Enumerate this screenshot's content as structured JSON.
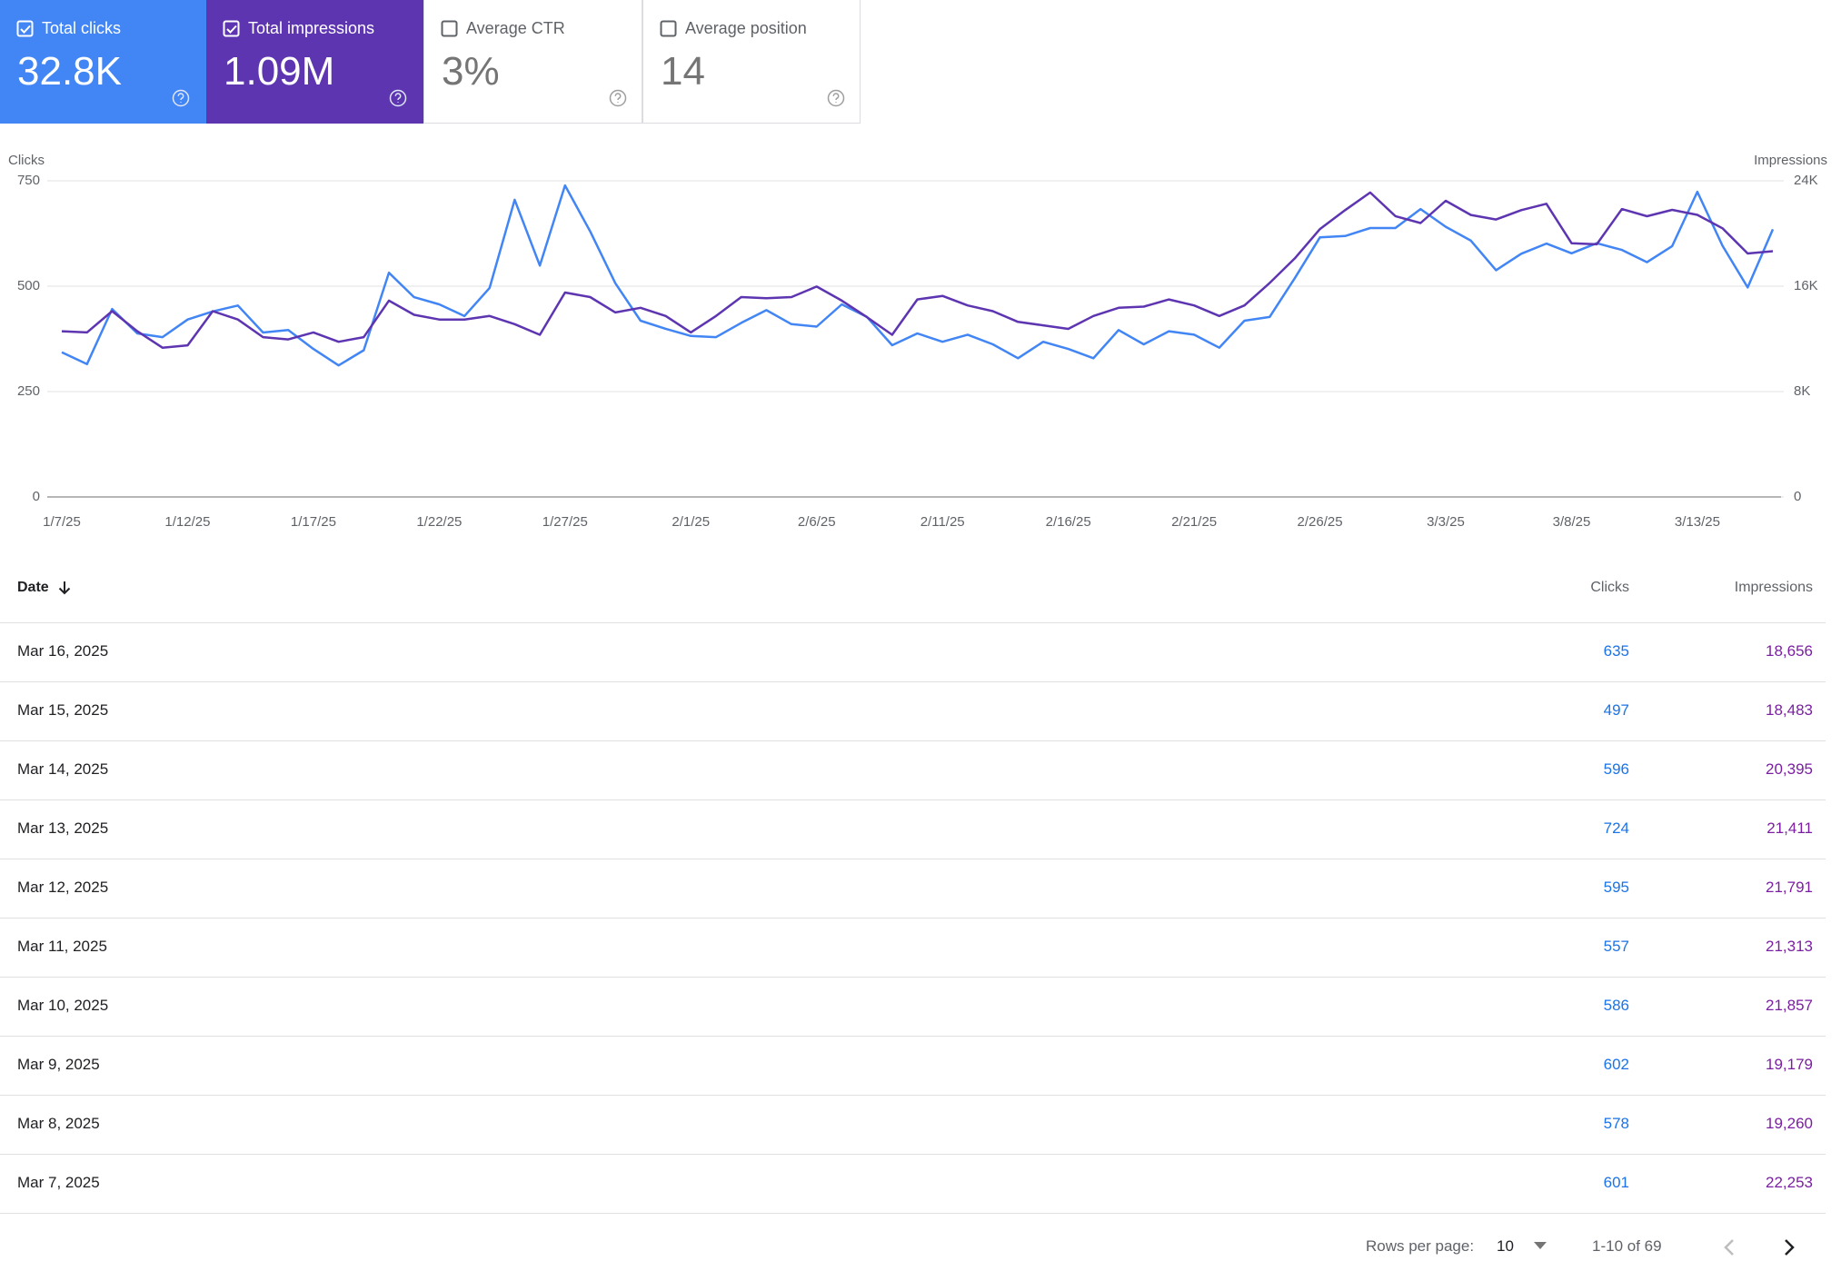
{
  "metric_cards": [
    {
      "label": "Total clicks",
      "value": "32.8K",
      "checked": true,
      "color": "#4285f4"
    },
    {
      "label": "Total impressions",
      "value": "1.09M",
      "checked": true,
      "color": "#5e35b1"
    },
    {
      "label": "Average CTR",
      "value": "3%",
      "checked": false,
      "color": "#ffffff"
    },
    {
      "label": "Average position",
      "value": "14",
      "checked": false,
      "color": "#ffffff"
    }
  ],
  "chart_data": {
    "type": "line",
    "categories": [
      "1/7/25",
      null,
      null,
      null,
      null,
      "1/12/25",
      null,
      null,
      null,
      null,
      "1/17/25",
      null,
      null,
      null,
      null,
      "1/22/25",
      null,
      null,
      null,
      null,
      "1/27/25",
      null,
      null,
      null,
      null,
      "2/1/25",
      null,
      null,
      null,
      null,
      "2/6/25",
      null,
      null,
      null,
      null,
      "2/11/25",
      null,
      null,
      null,
      null,
      "2/16/25",
      null,
      null,
      null,
      null,
      "2/21/25",
      null,
      null,
      null,
      null,
      "2/26/25",
      null,
      null,
      null,
      null,
      "3/3/25",
      null,
      null,
      null,
      null,
      "3/8/25",
      null,
      null,
      null,
      null,
      "3/13/25",
      null,
      null,
      null
    ],
    "series": [
      {
        "name": "Clicks",
        "color": "#4285f4",
        "values": [
          343,
          315,
          446,
          388,
          379,
          421,
          440,
          454,
          390,
          396,
          351,
          312,
          348,
          532,
          474,
          457,
          429,
          496,
          705,
          549,
          739,
          630,
          507,
          418,
          399,
          382,
          379,
          413,
          443,
          410,
          404,
          457,
          427,
          360,
          388,
          368,
          385,
          362,
          329,
          368,
          351,
          329,
          396,
          362,
          393,
          385,
          354,
          418,
          427,
          519,
          616,
          619,
          638,
          638,
          683,
          641,
          608,
          538,
          577,
          601,
          578,
          602,
          586,
          557,
          595,
          724,
          596,
          497,
          635
        ]
      },
      {
        "name": "Impressions",
        "color": "#5e35b1",
        "axis": "y2",
        "values": [
          12580,
          12490,
          14100,
          12580,
          11330,
          11510,
          14100,
          13470,
          12130,
          11960,
          12490,
          11780,
          12130,
          14900,
          13830,
          13470,
          13470,
          13740,
          13120,
          12310,
          15520,
          15170,
          14010,
          14360,
          13740,
          12490,
          13740,
          15170,
          15080,
          15170,
          15970,
          14900,
          13650,
          12310,
          14990,
          15260,
          14540,
          14100,
          13290,
          13030,
          12760,
          13740,
          14360,
          14450,
          14990,
          14540,
          13740,
          14540,
          16240,
          18110,
          20340,
          21770,
          23110,
          21320,
          20790,
          22480,
          21410,
          21060,
          21770,
          22253,
          19260,
          19179,
          21857,
          21313,
          21791,
          21411,
          20395,
          18483,
          18656
        ]
      }
    ],
    "ylim": [
      0,
      750
    ],
    "yticks": [
      0,
      250,
      500,
      750
    ],
    "y2lim": [
      0,
      24000
    ],
    "y2ticks": [
      0,
      {
        "value": 8000,
        "label": "8K"
      },
      {
        "value": 16000,
        "label": "16K"
      },
      {
        "value": 24000,
        "label": "24K"
      }
    ],
    "grid": true
  },
  "table": {
    "columns": [
      "Date",
      "Clicks",
      "Impressions"
    ],
    "rows": [
      [
        "Mar 16, 2025",
        "635",
        "18,656"
      ],
      [
        "Mar 15, 2025",
        "497",
        "18,483"
      ],
      [
        "Mar 14, 2025",
        "596",
        "20,395"
      ],
      [
        "Mar 13, 2025",
        "724",
        "21,411"
      ],
      [
        "Mar 12, 2025",
        "595",
        "21,791"
      ],
      [
        "Mar 11, 2025",
        "557",
        "21,313"
      ],
      [
        "Mar 10, 2025",
        "586",
        "21,857"
      ],
      [
        "Mar 9, 2025",
        "602",
        "19,179"
      ],
      [
        "Mar 8, 2025",
        "578",
        "19,260"
      ],
      [
        "Mar 7, 2025",
        "601",
        "22,253"
      ]
    ]
  },
  "pagination": {
    "rows_per_page_label": "Rows per page:",
    "rows_per_page": "10",
    "range": "1-10 of 69"
  }
}
